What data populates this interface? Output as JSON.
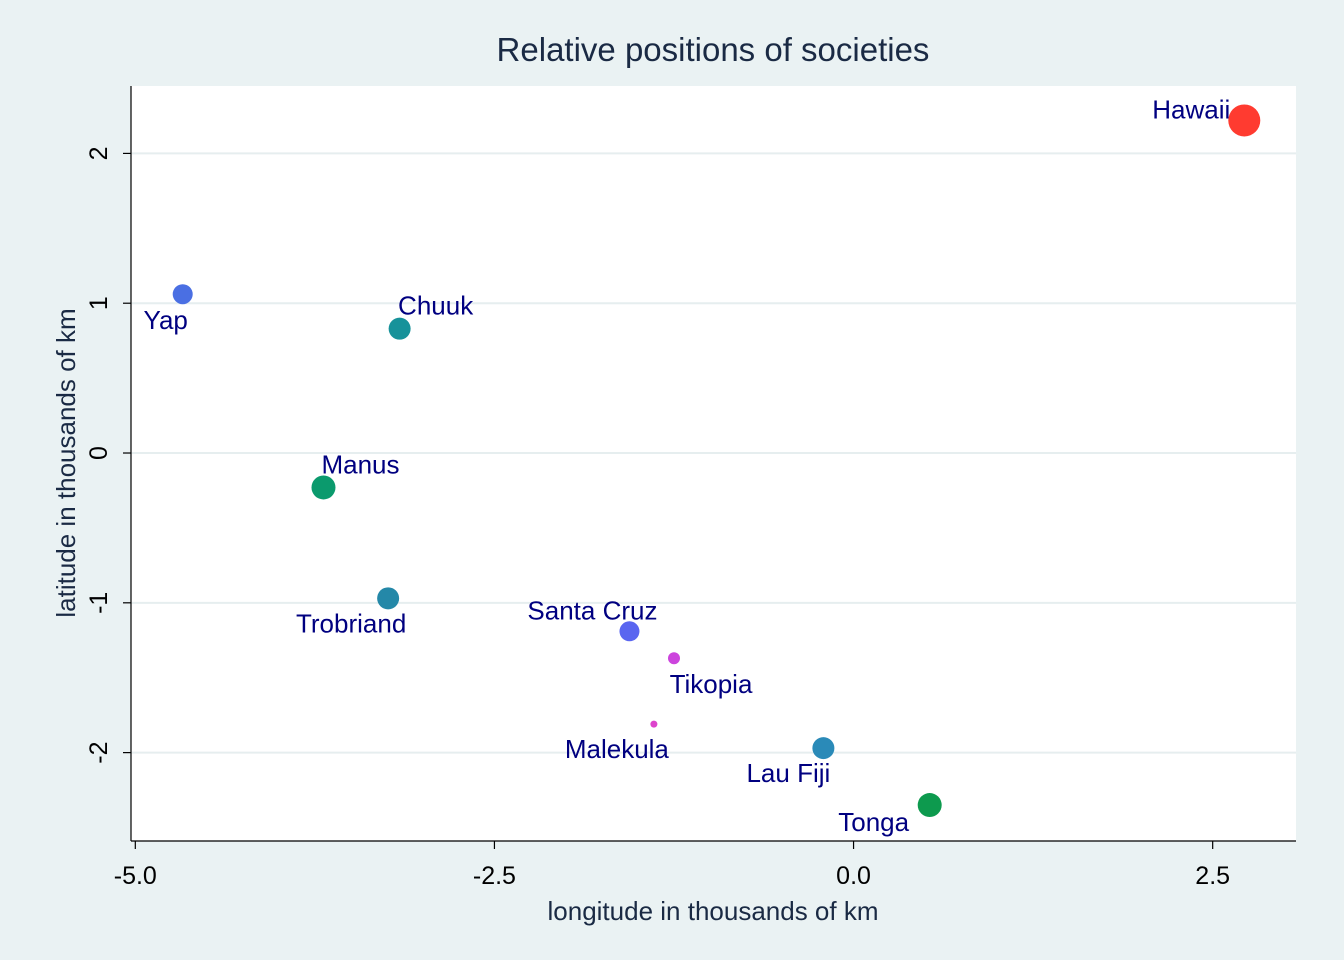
{
  "chart_data": {
    "type": "scatter",
    "title": "Relative positions of societies",
    "xlabel": "longitude in thousands of km",
    "ylabel": "latitude in thousands of km",
    "xlim": [
      -5.03,
      3.08
    ],
    "ylim": [
      -2.59,
      2.45
    ],
    "xticks": [
      -5.0,
      -2.5,
      0.0,
      2.5
    ],
    "xtick_labels": [
      "-5.0",
      "-2.5",
      "0.0",
      "2.5"
    ],
    "yticks": [
      -2,
      -1,
      0,
      1,
      2
    ],
    "ytick_labels": [
      "-2",
      "-1",
      "0",
      "1",
      "2"
    ],
    "grid": "horizontal",
    "legend": "none",
    "colors": {
      "background": "#eaf2f3",
      "plot_background": "#ffffff",
      "grid": "#e6eeef",
      "label_text": "#000080",
      "title_text": "#1a2a44",
      "axis_text": "#000000"
    },
    "points": [
      {
        "name": "Hawaii",
        "x": 2.72,
        "y": 2.22,
        "size": 16,
        "color": "#ff3b30",
        "label_pos": "left-up"
      },
      {
        "name": "Yap",
        "x": -4.67,
        "y": 1.06,
        "size": 10,
        "color": "#4a6fe3",
        "label_pos": "below-left"
      },
      {
        "name": "Chuuk",
        "x": -3.16,
        "y": 0.83,
        "size": 11,
        "color": "#17929a",
        "label_pos": "above"
      },
      {
        "name": "Manus",
        "x": -3.69,
        "y": -0.23,
        "size": 12,
        "color": "#0b9a6d",
        "label_pos": "above-right"
      },
      {
        "name": "Trobriand",
        "x": -3.24,
        "y": -0.97,
        "size": 11,
        "color": "#2488a8",
        "label_pos": "below-left"
      },
      {
        "name": "Santa Cruz",
        "x": -1.56,
        "y": -1.19,
        "size": 10,
        "color": "#5a66f0",
        "label_pos": "above-left"
      },
      {
        "name": "Tikopia",
        "x": -1.25,
        "y": -1.37,
        "size": 6,
        "color": "#cc44dd",
        "label_pos": "below-right"
      },
      {
        "name": "Malekula",
        "x": -1.39,
        "y": -1.81,
        "size": 3.5,
        "color": "#dd44cc",
        "label_pos": "below-left"
      },
      {
        "name": "Lau Fiji",
        "x": -0.21,
        "y": -1.97,
        "size": 11,
        "color": "#2a8ab8",
        "label_pos": "below-left"
      },
      {
        "name": "Tonga",
        "x": 0.53,
        "y": -2.35,
        "size": 12,
        "color": "#0d9a4e",
        "label_pos": "below-left"
      }
    ]
  }
}
